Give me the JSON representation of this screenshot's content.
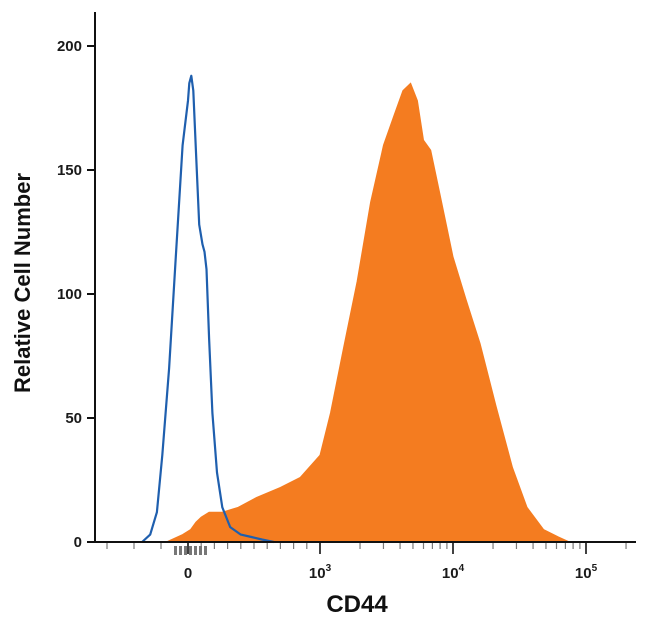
{
  "chart_data": {
    "type": "area",
    "title": "",
    "xlabel": "CD44",
    "ylabel": "Relative Cell Number",
    "x_scale": "biexponential",
    "xlim": [
      -300,
      250000
    ],
    "ylim": [
      0,
      210
    ],
    "x_ticks": [
      {
        "value": 0,
        "label": "0"
      },
      {
        "value": 1000,
        "label": "10",
        "exp": "3"
      },
      {
        "value": 10000,
        "label": "10",
        "exp": "4"
      },
      {
        "value": 100000,
        "label": "10",
        "exp": "5"
      }
    ],
    "y_ticks": [
      0,
      50,
      100,
      150,
      200
    ],
    "grid": false,
    "legend": "none",
    "series": [
      {
        "style": "outline",
        "color": "#1f5fae",
        "x": [
          -170,
          -140,
          -115,
          -95,
          -70,
          -45,
          -20,
          0,
          10,
          25,
          40,
          60,
          85,
          110,
          125,
          140,
          160,
          185,
          220,
          260,
          320,
          400,
          480,
          560,
          650
        ],
        "y": [
          0,
          3,
          12,
          35,
          70,
          115,
          160,
          178,
          185,
          188,
          182,
          158,
          128,
          120,
          117,
          110,
          82,
          52,
          28,
          14,
          6,
          3,
          2,
          1,
          0
        ]
      },
      {
        "style": "filled",
        "color": "#f47c20",
        "x": [
          -80,
          -20,
          20,
          60,
          100,
          160,
          260,
          380,
          520,
          700,
          850,
          1000,
          1200,
          1500,
          1900,
          2400,
          3000,
          3600,
          4200,
          4800,
          5400,
          6000,
          6800,
          8000,
          10000,
          12500,
          16000,
          21000,
          28000,
          36000,
          48000,
          62000,
          75000
        ],
        "y": [
          0,
          3,
          5,
          8,
          10,
          12,
          12,
          14,
          18,
          22,
          26,
          35,
          52,
          78,
          105,
          137,
          160,
          172,
          182,
          185,
          178,
          162,
          158,
          140,
          115,
          98,
          80,
          55,
          30,
          14,
          5,
          2,
          0
        ]
      }
    ]
  }
}
